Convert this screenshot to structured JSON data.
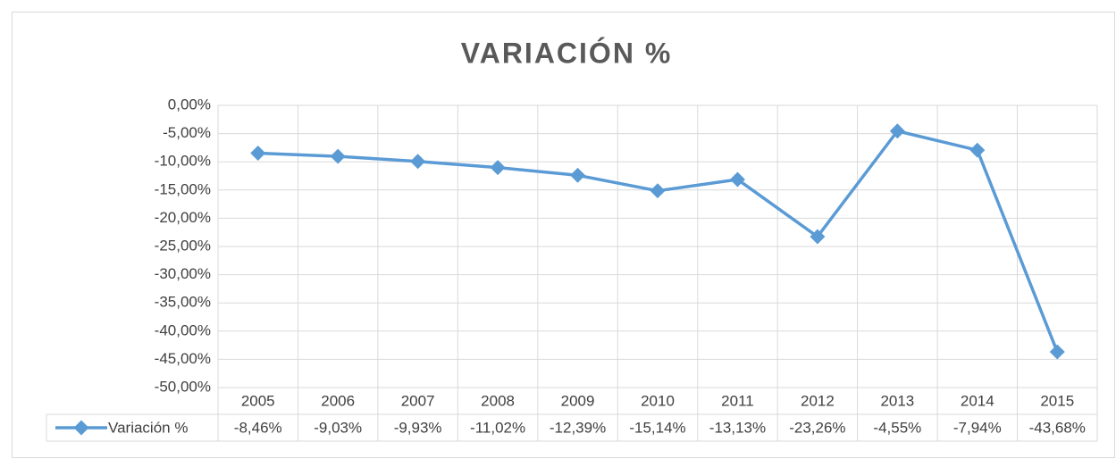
{
  "chart_data": {
    "type": "line",
    "title": "VARIACIÓN %",
    "categories": [
      "2005",
      "2006",
      "2007",
      "2008",
      "2009",
      "2010",
      "2011",
      "2012",
      "2013",
      "2014",
      "2015"
    ],
    "series": [
      {
        "name": "Variación %",
        "color": "#5b9bd5",
        "values": [
          -8.46,
          -9.03,
          -9.93,
          -11.02,
          -12.39,
          -15.14,
          -13.13,
          -23.26,
          -4.55,
          -7.94,
          -43.68
        ],
        "value_labels": [
          "-8,46%",
          "-9,03%",
          "-9,93%",
          "-11,02%",
          "-12,39%",
          "-15,14%",
          "-13,13%",
          "-23,26%",
          "-4,55%",
          "-7,94%",
          "-43,68%"
        ]
      }
    ],
    "ylim": [
      -50,
      0
    ],
    "yticks": [
      {
        "value": 0,
        "label": "0,00%"
      },
      {
        "value": -5,
        "label": "-5,00%"
      },
      {
        "value": -10,
        "label": "-10,00%"
      },
      {
        "value": -15,
        "label": "-15,00%"
      },
      {
        "value": -20,
        "label": "-20,00%"
      },
      {
        "value": -25,
        "label": "-25,00%"
      },
      {
        "value": -30,
        "label": "-30,00%"
      },
      {
        "value": -35,
        "label": "-35,00%"
      },
      {
        "value": -40,
        "label": "-40,00%"
      },
      {
        "value": -45,
        "label": "-45,00%"
      },
      {
        "value": -50,
        "label": "-50,00%"
      }
    ],
    "grid": true,
    "data_table": true
  }
}
